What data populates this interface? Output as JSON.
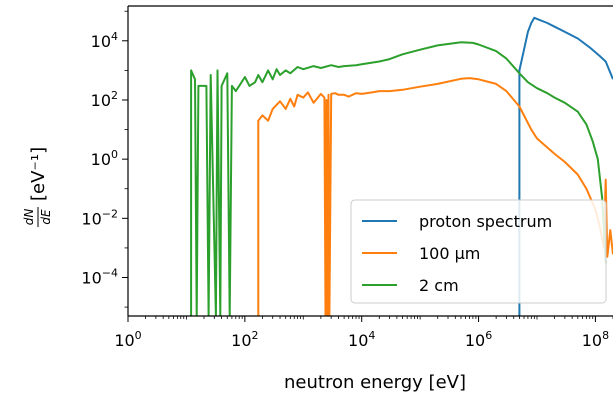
{
  "chart_data": {
    "type": "line",
    "title": "",
    "xlabel": "neutron energy [eV]",
    "ylabel": "[eV⁻¹]",
    "ylabel_fraction": {
      "numerator": "dN",
      "denominator": "dE"
    },
    "x_scale": "log",
    "y_scale": "log",
    "xlim": [
      1,
      200000000
    ],
    "ylim": [
      5e-06,
      150000
    ],
    "x_ticks": [
      {
        "value": 1,
        "base": "10",
        "exp": "0"
      },
      {
        "value": 100,
        "base": "10",
        "exp": "2"
      },
      {
        "value": 10000,
        "base": "10",
        "exp": "4"
      },
      {
        "value": 1000000,
        "base": "10",
        "exp": "6"
      },
      {
        "value": 100000000,
        "base": "10",
        "exp": "8"
      }
    ],
    "y_ticks": [
      {
        "value": 10000,
        "base": "10",
        "exp": "4"
      },
      {
        "value": 100,
        "base": "10",
        "exp": "2"
      },
      {
        "value": 1,
        "base": "10",
        "exp": "0"
      },
      {
        "value": 0.01,
        "base": "10",
        "exp": "−2"
      },
      {
        "value": 0.0001,
        "base": "10",
        "exp": "−4"
      }
    ],
    "grid": false,
    "legend_position": "lower-right",
    "series": [
      {
        "name": "proton spectrum",
        "color": "#1f77b4",
        "points": [
          [
            5000000,
            5e-06
          ],
          [
            5010000,
            1000
          ],
          [
            6000000,
            5000
          ],
          [
            7000000,
            20000
          ],
          [
            8000000,
            40000
          ],
          [
            9000000,
            60000
          ],
          [
            10000000,
            55000
          ],
          [
            15000000,
            40000
          ],
          [
            20000000,
            30000
          ],
          [
            30000000,
            20000
          ],
          [
            50000000,
            12000
          ],
          [
            80000000,
            6000
          ],
          [
            120000000,
            3000
          ],
          [
            150000000,
            2000
          ],
          [
            200000000,
            500
          ]
        ]
      },
      {
        "name": "100 µm",
        "color": "#ff7f0e",
        "points": [
          [
            170,
            5e-06
          ],
          [
            170,
            20
          ],
          [
            200,
            30
          ],
          [
            250,
            20
          ],
          [
            300,
            50
          ],
          [
            400,
            90
          ],
          [
            500,
            50
          ],
          [
            600,
            110
          ],
          [
            700,
            60
          ],
          [
            800,
            150
          ],
          [
            1000,
            120
          ],
          [
            1200,
            180
          ],
          [
            1500,
            80
          ],
          [
            2000,
            160
          ],
          [
            2300,
            120
          ],
          [
            2400,
            5e-06
          ],
          [
            2500,
            100
          ],
          [
            2600,
            5e-06
          ],
          [
            2700,
            150
          ],
          [
            2800,
            5e-06
          ],
          [
            3000,
            160
          ],
          [
            3500,
            170
          ],
          [
            4000,
            150
          ],
          [
            5000,
            150
          ],
          [
            6000,
            130
          ],
          [
            8000,
            170
          ],
          [
            10000,
            160
          ],
          [
            15000,
            180
          ],
          [
            20000,
            200
          ],
          [
            30000,
            200
          ],
          [
            50000,
            220
          ],
          [
            100000,
            280
          ],
          [
            200000,
            350
          ],
          [
            500000,
            520
          ],
          [
            700000,
            550
          ],
          [
            1000000,
            500
          ],
          [
            2000000,
            350
          ],
          [
            3000000,
            200
          ],
          [
            5000000,
            60
          ],
          [
            8000000,
            10
          ],
          [
            10000000,
            5
          ],
          [
            20000000,
            1.5
          ],
          [
            30000000,
            0.8
          ],
          [
            50000000,
            0.3
          ],
          [
            70000000,
            0.1
          ],
          [
            100000000,
            0.02
          ],
          [
            120000000,
            0.005
          ],
          [
            140000000,
            0.001
          ],
          [
            150000000,
            0.2
          ],
          [
            160000000,
            0.0005
          ],
          [
            180000000,
            0.004
          ],
          [
            200000000,
            0.0006
          ]
        ]
      },
      {
        "name": "2 cm",
        "color": "#2ca02c",
        "points": [
          [
            12,
            5e-06
          ],
          [
            12,
            1000
          ],
          [
            14,
            500
          ],
          [
            15,
            5e-06
          ],
          [
            16,
            300
          ],
          [
            22,
            300
          ],
          [
            24,
            5e-06
          ],
          [
            26,
            700
          ],
          [
            32,
            5e-06
          ],
          [
            34,
            1000
          ],
          [
            38,
            5e-06
          ],
          [
            40,
            300
          ],
          [
            50,
            800
          ],
          [
            55,
            5e-06
          ],
          [
            60,
            300
          ],
          [
            70,
            200
          ],
          [
            80,
            300
          ],
          [
            100,
            600
          ],
          [
            120,
            300
          ],
          [
            150,
            400
          ],
          [
            170,
            700
          ],
          [
            200,
            400
          ],
          [
            250,
            1000
          ],
          [
            300,
            500
          ],
          [
            350,
            1100
          ],
          [
            400,
            700
          ],
          [
            500,
            1000
          ],
          [
            600,
            800
          ],
          [
            800,
            1300
          ],
          [
            1000,
            1100
          ],
          [
            1500,
            1400
          ],
          [
            2000,
            1200
          ],
          [
            3000,
            1500
          ],
          [
            4000,
            1300
          ],
          [
            5000,
            1400
          ],
          [
            8000,
            1500
          ],
          [
            10000,
            1600
          ],
          [
            20000,
            2000
          ],
          [
            30000,
            2400
          ],
          [
            50000,
            3500
          ],
          [
            100000,
            5000
          ],
          [
            200000,
            7000
          ],
          [
            500000,
            9000
          ],
          [
            800000,
            8500
          ],
          [
            1000000,
            7500
          ],
          [
            2000000,
            4500
          ],
          [
            3000000,
            2500
          ],
          [
            5000000,
            800
          ],
          [
            7000000,
            400
          ],
          [
            10000000,
            250
          ],
          [
            15000000,
            170
          ],
          [
            20000000,
            120
          ],
          [
            30000000,
            80
          ],
          [
            50000000,
            40
          ],
          [
            70000000,
            15
          ],
          [
            90000000,
            4
          ],
          [
            110000000,
            1
          ],
          [
            130000000,
            0.05
          ],
          [
            150000000,
            0.0003
          ]
        ]
      }
    ]
  }
}
